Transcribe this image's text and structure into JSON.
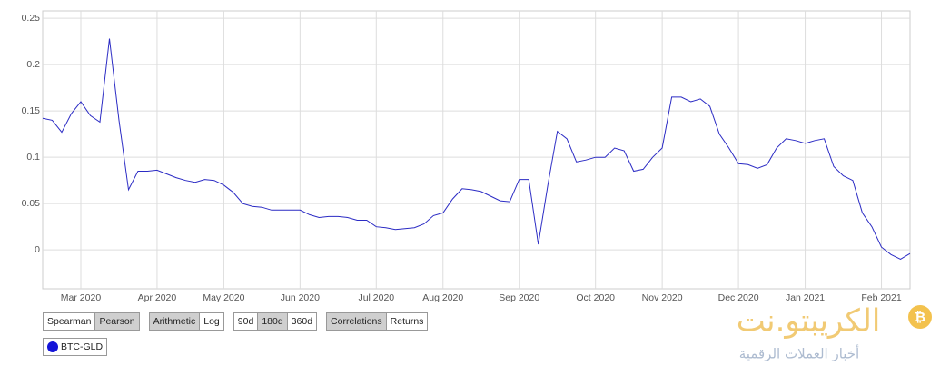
{
  "chart_data": {
    "type": "line",
    "categories": [
      null,
      null,
      null,
      null,
      "Mar 2020",
      null,
      null,
      null,
      null,
      null,
      null,
      null,
      "Apr 2020",
      null,
      null,
      null,
      null,
      null,
      null,
      "May 2020",
      null,
      null,
      null,
      null,
      null,
      null,
      null,
      "Jun 2020",
      null,
      null,
      null,
      null,
      null,
      null,
      null,
      "Jul 2020",
      null,
      null,
      null,
      null,
      null,
      null,
      "Aug 2020",
      null,
      null,
      null,
      null,
      null,
      null,
      null,
      "Sep 2020",
      null,
      null,
      null,
      null,
      null,
      null,
      null,
      "Oct 2020",
      null,
      null,
      null,
      null,
      null,
      null,
      "Nov 2020",
      null,
      null,
      null,
      null,
      null,
      null,
      null,
      "Dec 2020",
      null,
      null,
      null,
      null,
      null,
      null,
      "Jan 2021",
      null,
      null,
      null,
      null,
      null,
      null,
      null,
      "Feb 2021",
      null,
      null,
      null
    ],
    "series": [
      {
        "name": "BTC-GLD",
        "color": "#2b2bc4",
        "values": [
          0.142,
          0.14,
          0.127,
          0.147,
          0.16,
          0.145,
          0.138,
          0.228,
          0.14,
          0.065,
          0.085,
          0.085,
          0.086,
          0.082,
          0.078,
          0.075,
          0.073,
          0.076,
          0.075,
          0.07,
          0.062,
          0.05,
          0.047,
          0.046,
          0.043,
          0.043,
          0.043,
          0.043,
          0.038,
          0.035,
          0.036,
          0.036,
          0.035,
          0.032,
          0.032,
          0.025,
          0.024,
          0.022,
          0.023,
          0.024,
          0.028,
          0.037,
          0.04,
          0.055,
          0.066,
          0.065,
          0.063,
          0.058,
          0.053,
          0.052,
          0.076,
          0.076,
          0.006,
          0.07,
          0.128,
          0.12,
          0.095,
          0.097,
          0.1,
          0.1,
          0.11,
          0.107,
          0.085,
          0.087,
          0.1,
          0.11,
          0.165,
          0.165,
          0.16,
          0.163,
          0.155,
          0.125,
          0.11,
          0.093,
          0.092,
          0.088,
          0.092,
          0.11,
          0.12,
          0.118,
          0.115,
          0.118,
          0.12,
          0.09,
          0.08,
          0.075,
          0.04,
          0.025,
          0.003,
          -0.005,
          -0.01,
          -0.004
        ]
      }
    ],
    "ylim": [
      -0.042,
      0.258
    ],
    "yticks": [
      0,
      0.05,
      0.1,
      0.15,
      0.2,
      0.25
    ],
    "grid": true,
    "legend_color": "#1414d8"
  },
  "ui": {
    "controls": [
      {
        "options": [
          "Spearman",
          "Pearson"
        ],
        "selected": 1
      },
      {
        "options": [
          "Arithmetic",
          "Log"
        ],
        "selected": 0
      },
      {
        "options": [
          "90d",
          "180d",
          "360d"
        ],
        "selected": 1
      },
      {
        "options": [
          "Correlations",
          "Returns"
        ],
        "selected": 0
      }
    ]
  },
  "watermark": {
    "title": "الكريبتو.نت",
    "subtitle": "أخبار العملات الرقمية"
  }
}
